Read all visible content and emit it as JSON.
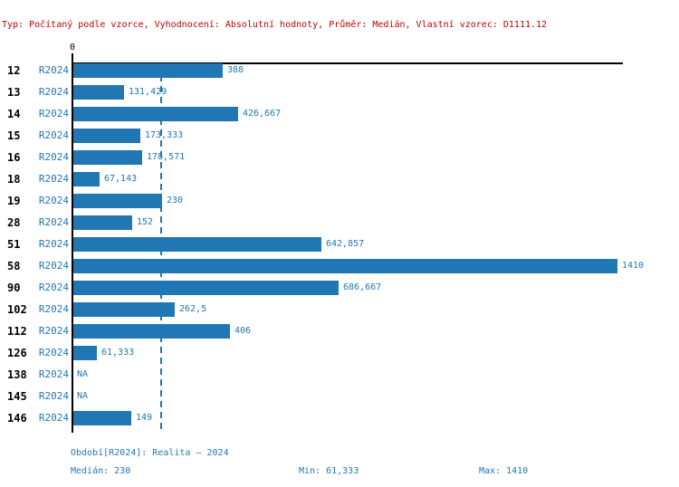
{
  "header": {
    "info_line": "Typ: Počítaný podle vzorce, Vyhodnocení: Absolutní hodnoty, Průměr: Medián, Vlastní vzorec: D1111.12"
  },
  "axis": {
    "zero_label": "0"
  },
  "chart_data": {
    "type": "bar",
    "orientation": "horizontal",
    "title": "",
    "xlabel": "",
    "ylabel": "",
    "xlim": [
      0,
      1410
    ],
    "grid": false,
    "legend_position": "none",
    "median_line_value": 230,
    "series_name": "R2024",
    "categories": [
      "12",
      "13",
      "14",
      "15",
      "16",
      "18",
      "19",
      "28",
      "51",
      "58",
      "90",
      "102",
      "112",
      "126",
      "138",
      "145",
      "146"
    ],
    "rows": [
      {
        "category": "12",
        "period": "R2024",
        "value": 388,
        "value_label": "388"
      },
      {
        "category": "13",
        "period": "R2024",
        "value": 131.429,
        "value_label": "131,429"
      },
      {
        "category": "14",
        "period": "R2024",
        "value": 426.667,
        "value_label": "426,667"
      },
      {
        "category": "15",
        "period": "R2024",
        "value": 173.333,
        "value_label": "173,333"
      },
      {
        "category": "16",
        "period": "R2024",
        "value": 178.571,
        "value_label": "178,571"
      },
      {
        "category": "18",
        "period": "R2024",
        "value": 67.143,
        "value_label": "67,143"
      },
      {
        "category": "19",
        "period": "R2024",
        "value": 230,
        "value_label": "230"
      },
      {
        "category": "28",
        "period": "R2024",
        "value": 152,
        "value_label": "152"
      },
      {
        "category": "51",
        "period": "R2024",
        "value": 642.857,
        "value_label": "642,857"
      },
      {
        "category": "58",
        "period": "R2024",
        "value": 1410,
        "value_label": "1410"
      },
      {
        "category": "90",
        "period": "R2024",
        "value": 686.667,
        "value_label": "686,667"
      },
      {
        "category": "102",
        "period": "R2024",
        "value": 262.5,
        "value_label": "262,5"
      },
      {
        "category": "112",
        "period": "R2024",
        "value": 406,
        "value_label": "406"
      },
      {
        "category": "126",
        "period": "R2024",
        "value": 61.333,
        "value_label": "61,333"
      },
      {
        "category": "138",
        "period": "R2024",
        "value": null,
        "value_label": "NA"
      },
      {
        "category": "145",
        "period": "R2024",
        "value": null,
        "value_label": "NA"
      },
      {
        "category": "146",
        "period": "R2024",
        "value": 149,
        "value_label": "149"
      }
    ]
  },
  "footer": {
    "period_line": "Období[R2024]: Realita – 2024",
    "median": "Medián: 230",
    "min": "Min: 61,333",
    "max": "Max: 1410"
  },
  "colors": {
    "bar_blue": "#2077b4",
    "text_blue": "#1f77b4",
    "header_red": "#c00000",
    "axis_black": "#000000"
  }
}
